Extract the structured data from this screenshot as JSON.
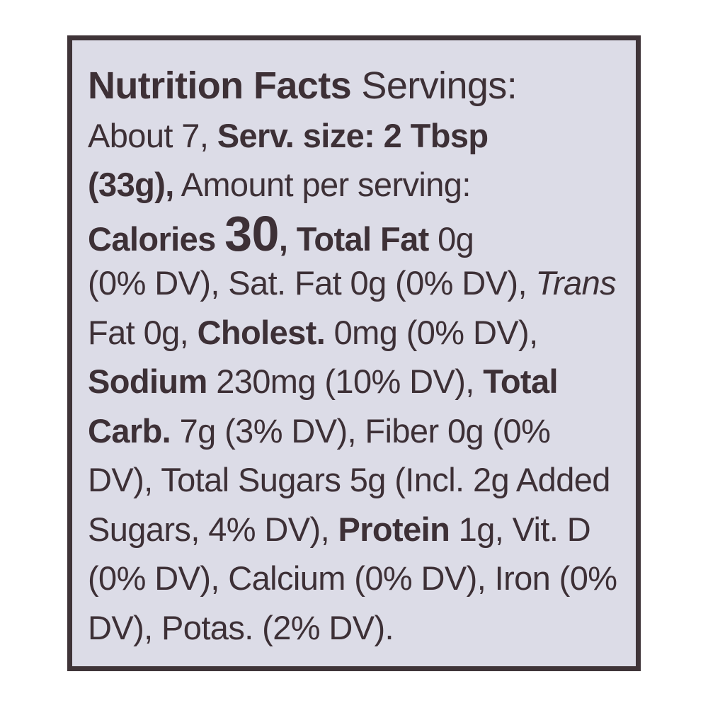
{
  "label": {
    "lines": [
      [
        {
          "t": "Nutrition Facts",
          "s": "b title"
        },
        {
          "t": " Servings:",
          "s": "title"
        }
      ],
      [
        {
          "t": "About 7, ",
          "s": ""
        },
        {
          "t": "Serv. size: 2 Tbsp",
          "s": "b"
        }
      ],
      [
        {
          "t": "(33g),",
          "s": "b"
        },
        {
          "t": " Amount per serving:",
          "s": ""
        }
      ],
      [
        {
          "t": "Calories ",
          "s": "b"
        },
        {
          "t": "30",
          "s": "big"
        },
        {
          "t": ", ",
          "s": "b"
        },
        {
          "t": "Total Fat",
          "s": "b"
        },
        {
          "t": " 0g",
          "s": ""
        }
      ],
      [
        {
          "t": "(0% DV), Sat. Fat 0g (0% DV), ",
          "s": ""
        },
        {
          "t": "Trans",
          "s": "i"
        }
      ],
      [
        {
          "t": "Fat 0g, ",
          "s": ""
        },
        {
          "t": "Cholest.",
          "s": "b"
        },
        {
          "t": " 0mg (0% DV),",
          "s": ""
        }
      ],
      [
        {
          "t": "Sodium",
          "s": "b"
        },
        {
          "t": " 230mg (10% DV), ",
          "s": ""
        },
        {
          "t": "Total",
          "s": "b"
        }
      ],
      [
        {
          "t": "Carb.",
          "s": "b"
        },
        {
          "t": " 7g (3% DV), Fiber 0g (0%",
          "s": ""
        }
      ],
      [
        {
          "t": "DV), Total Sugars 5g (Incl. 2g Added",
          "s": ""
        }
      ],
      [
        {
          "t": "Sugars, 4% DV), ",
          "s": ""
        },
        {
          "t": "Protein",
          "s": "b"
        },
        {
          "t": " 1g, Vit. D",
          "s": ""
        }
      ],
      [
        {
          "t": "(0% DV), Calcium (0% DV), Iron (0%",
          "s": ""
        }
      ],
      [
        {
          "t": "DV), Potas. (2% DV).",
          "s": ""
        }
      ]
    ]
  },
  "colors": {
    "text": "#3d3036",
    "border": "#3f3438",
    "panel": "#dcdce7"
  }
}
